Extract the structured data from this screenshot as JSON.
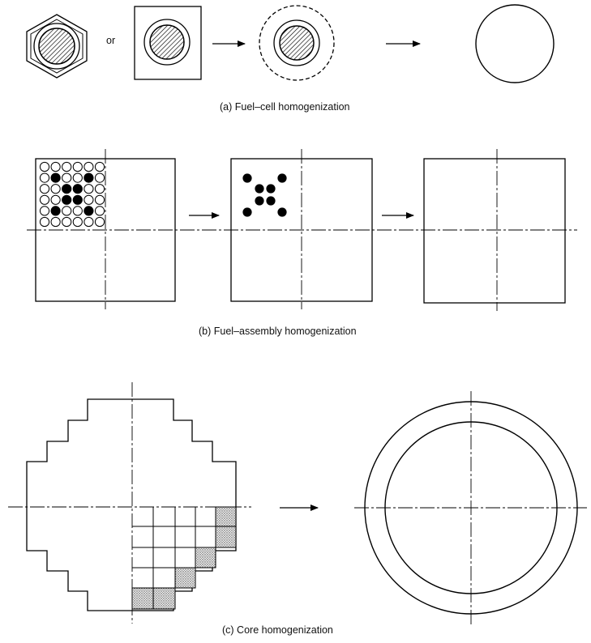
{
  "section_a": {
    "or_label": "or",
    "caption": "(a) Fuel–cell homogenization"
  },
  "section_b": {
    "caption": "(b) Fuel–assembly homogenization",
    "pin_grid": [
      [
        0,
        0,
        0,
        0,
        0,
        0
      ],
      [
        0,
        1,
        0,
        0,
        1,
        0
      ],
      [
        0,
        0,
        1,
        1,
        0,
        0
      ],
      [
        0,
        0,
        1,
        1,
        0,
        0
      ],
      [
        0,
        1,
        0,
        0,
        1,
        0
      ],
      [
        0,
        0,
        0,
        0,
        0,
        0
      ]
    ]
  },
  "section_c": {
    "caption": "(c) Core homogenization"
  },
  "colors": {
    "line": "#000000",
    "background": "#ffffff",
    "fuel_hatch": "#000000",
    "shaded_cell": "#bdbdbd"
  }
}
